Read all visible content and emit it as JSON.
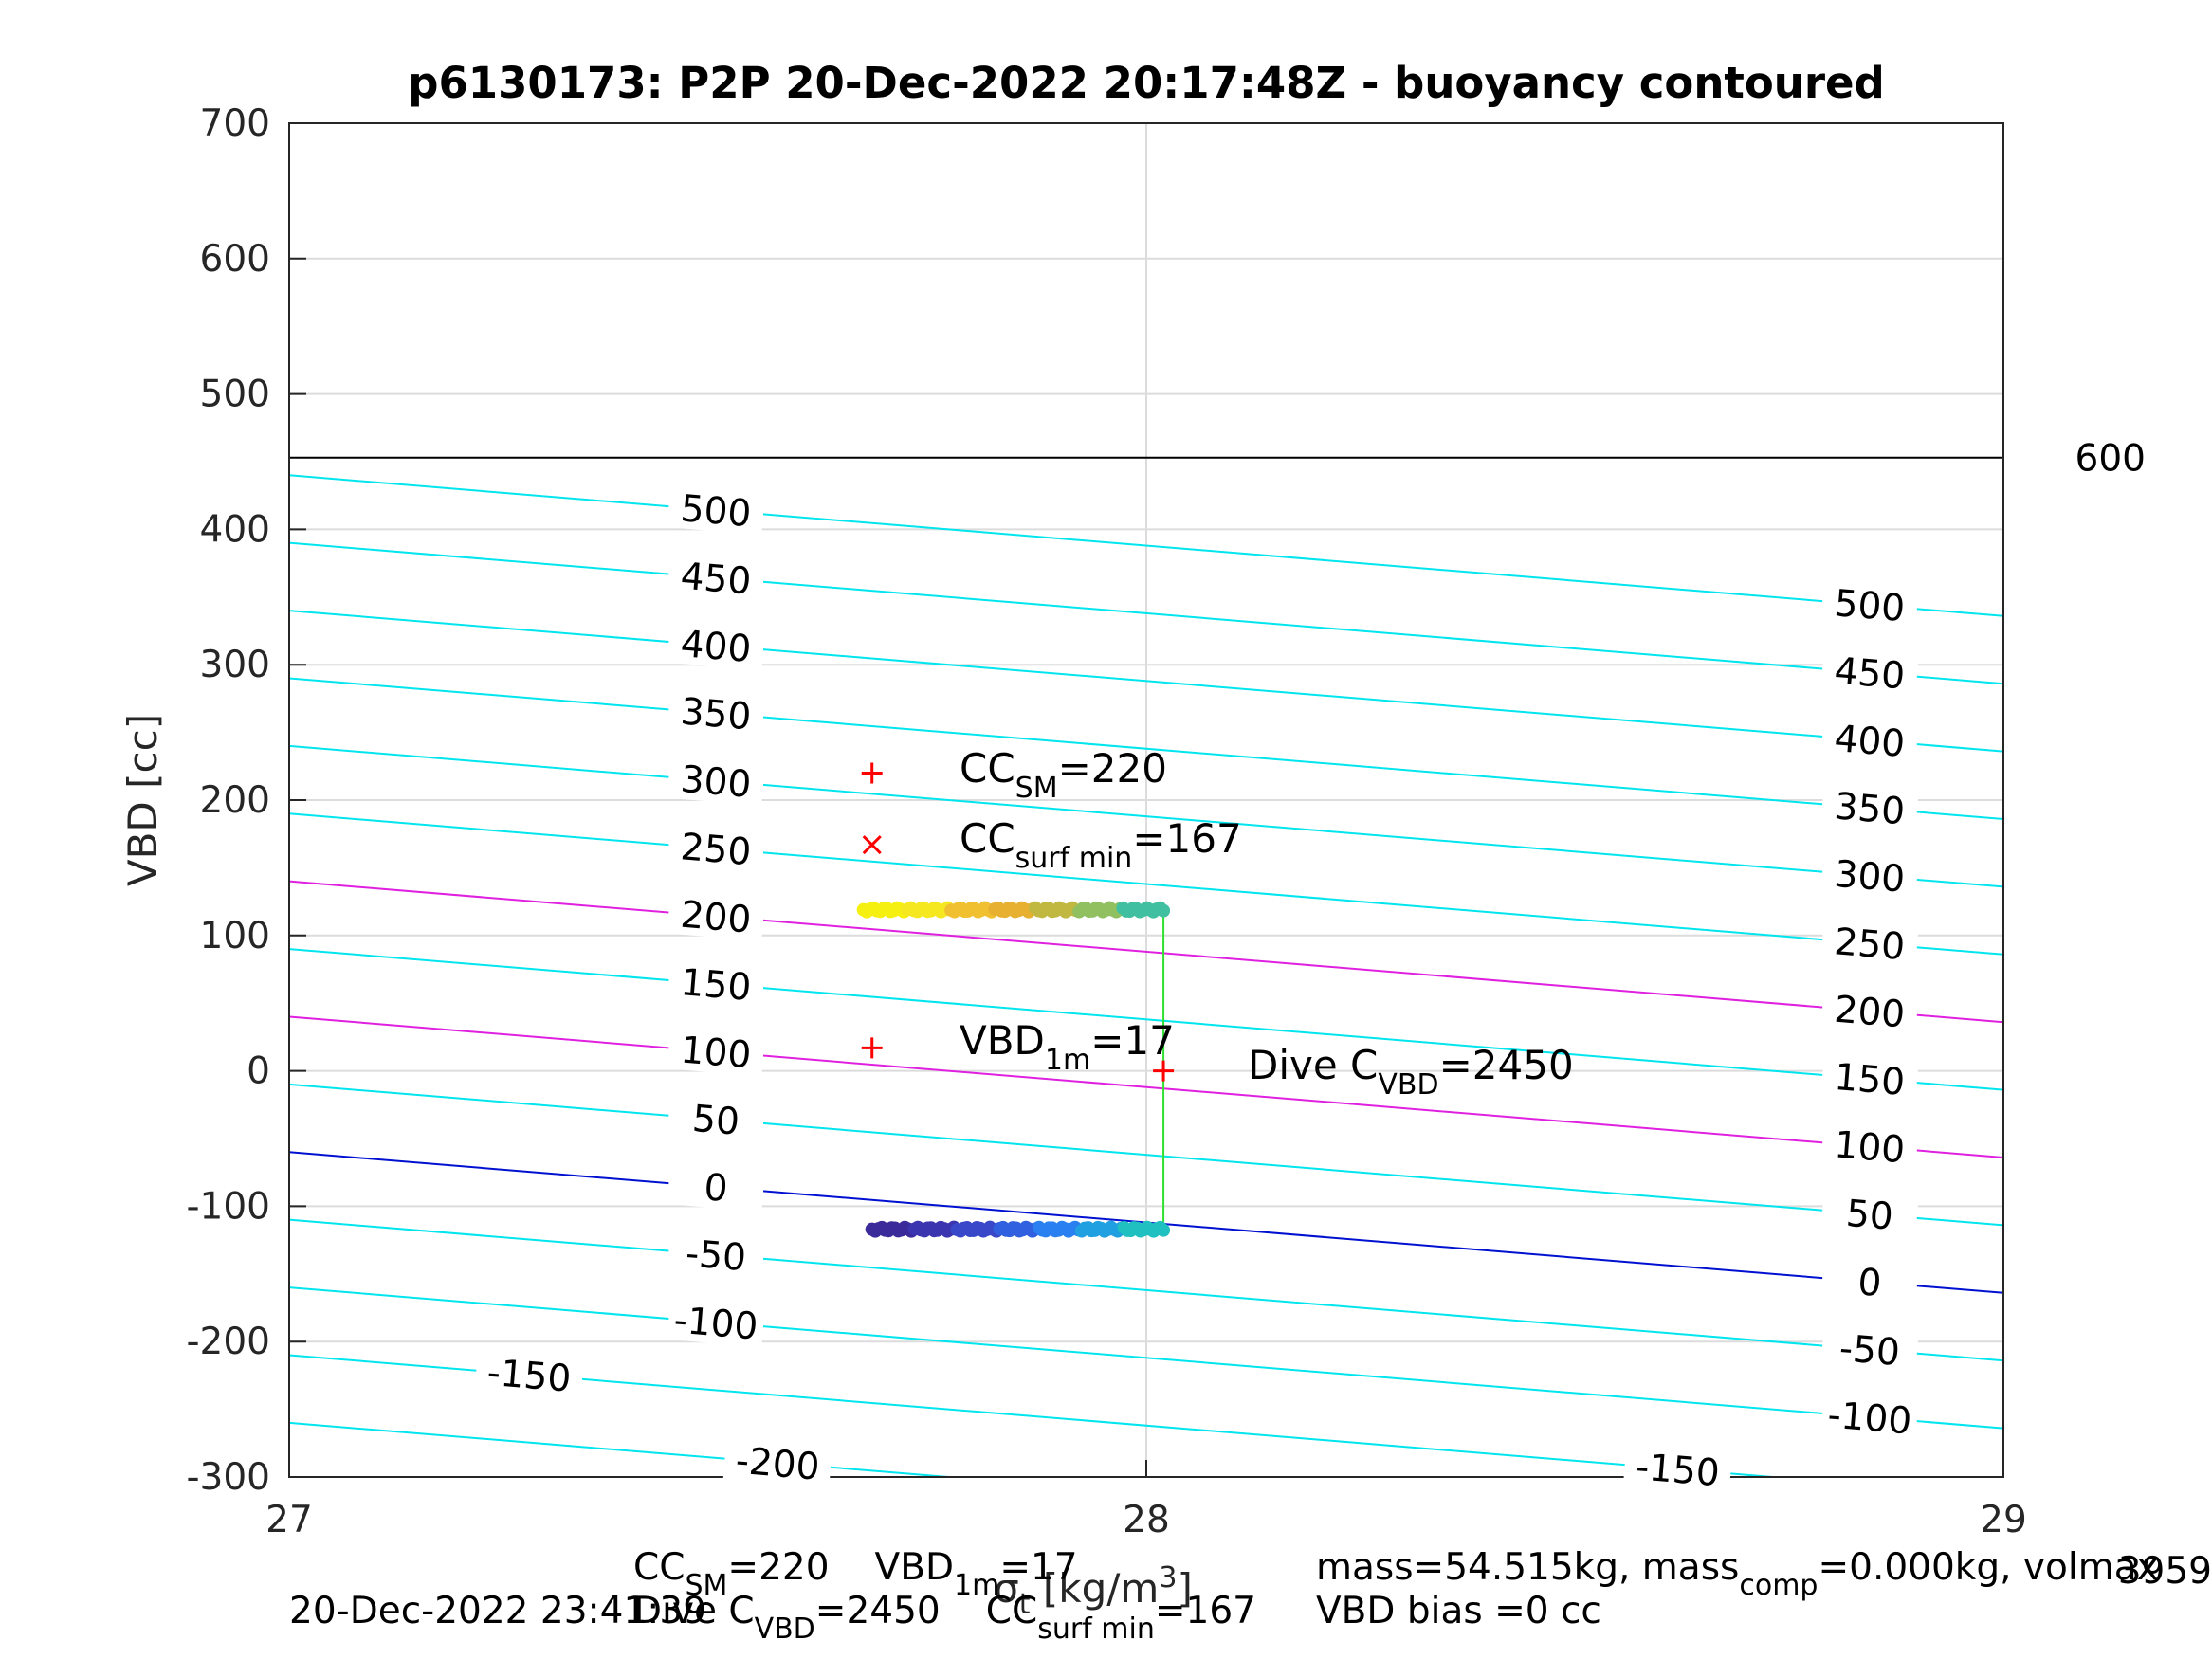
{
  "chart_data": {
    "type": "scatter",
    "title": "p6130173: P2P 20-Dec-2022 20:17:48Z - buoyancy contoured",
    "ylabel": "VBD [cc]",
    "xlim": [
      27,
      29
    ],
    "ylim": [
      -300,
      700
    ],
    "xticks": [
      "27",
      "28",
      "29"
    ],
    "yticks": [
      "700",
      "600",
      "500",
      "400",
      "300",
      "200",
      "100",
      "0",
      "-100",
      "-200",
      "-300"
    ],
    "grid": true,
    "vbd_max_line": {
      "y": 453,
      "label": "600"
    },
    "buoyancy_contours": [
      {
        "level": "500",
        "y_left": 440,
        "y_right": 336
      },
      {
        "level": "450",
        "y_left": 390,
        "y_right": 286
      },
      {
        "level": "400",
        "y_left": 340,
        "y_right": 236
      },
      {
        "level": "350",
        "y_left": 290,
        "y_right": 186
      },
      {
        "level": "300",
        "y_left": 240,
        "y_right": 136
      },
      {
        "level": "250",
        "y_left": 190,
        "y_right": 86
      },
      {
        "level": "200",
        "y_left": 140,
        "y_right": 36
      },
      {
        "level": "150",
        "y_left": 90,
        "y_right": -14
      },
      {
        "level": "100",
        "y_left": 40,
        "y_right": -64
      },
      {
        "level": "50",
        "y_left": -10,
        "y_right": -114
      },
      {
        "level": "0",
        "y_left": -60,
        "y_right": -164
      },
      {
        "level": "-50",
        "y_left": -110,
        "y_right": -214
      },
      {
        "level": "-100",
        "y_left": -160,
        "y_right": -264
      },
      {
        "level": "-150",
        "y_left": -210,
        "y_right": -314
      },
      {
        "level": "-200",
        "y_left": -260,
        "y_right": -364
      }
    ],
    "contour_colors": {
      "default": "#00e5ee",
      "highlight": "#e020e0",
      "zero": "#0010d0",
      "vbd_max": "#000000"
    },
    "highlight_levels": [
      "200",
      "100"
    ],
    "zero_level": "0",
    "left_labels": [
      "500",
      "450",
      "400",
      "350",
      "300",
      "250",
      "200",
      "150",
      "100",
      "50",
      "0",
      "-50",
      "-100",
      "-150",
      "-200"
    ],
    "right_labels": [
      "500",
      "450",
      "400",
      "350",
      "300",
      "250",
      "200",
      "150",
      "100",
      "50",
      "0",
      "-50",
      "-100",
      "-150"
    ],
    "surface_track": {
      "x_start": 27.67,
      "x_end": 28.02,
      "y": 119,
      "colors": [
        "#f5f010",
        "#f5e820",
        "#f0c030",
        "#e8b030",
        "#c0b840",
        "#90c060",
        "#40c0a0"
      ]
    },
    "deep_track": {
      "x_start": 27.68,
      "x_end": 28.02,
      "y": -117,
      "colors": [
        "#3a2a9a",
        "#3c35b0",
        "#3848c8",
        "#3060e0",
        "#2a80f0",
        "#20a0e0",
        "#20c0c0"
      ]
    },
    "connector": {
      "x": 28.02,
      "y_top": 119,
      "y_bottom": -117,
      "color": "#30e030"
    },
    "markers": [
      {
        "type": "plus",
        "x": 27.68,
        "y": 220,
        "color": "#ff0000"
      },
      {
        "type": "cross",
        "x": 27.68,
        "y": 167,
        "color": "#ff0000"
      },
      {
        "type": "plus",
        "x": 27.68,
        "y": 17,
        "color": "#ff0000"
      },
      {
        "type": "plus",
        "x": 28.02,
        "y": 0,
        "color": "#ff0000"
      }
    ],
    "annotations": {
      "cc_sm": {
        "main": "CC",
        "sub": "SM",
        "tail": "=220"
      },
      "cc_surf": {
        "main": "CC",
        "sub": "surf min",
        "tail": "=167"
      },
      "vbd1m": {
        "main": "VBD",
        "sub": "1m",
        "tail": "=17"
      },
      "dive_c": {
        "main": "Dive C",
        "sub": "VBD",
        "tail": "=2450"
      }
    },
    "xlabel_parts": {
      "main": "σ",
      "sub": "t",
      "tail": " [kg/m",
      "sup": "3",
      "close": "]"
    },
    "footer": {
      "date": "20-Dec-2022 23:41:39",
      "line1": {
        "cc": "CC",
        "cc_sub": "SM",
        "cc_val": "=220",
        "vbd": "VBD",
        "vbd_sub": "1m",
        "vbd_val": "=17"
      },
      "line2": {
        "dive": "Dive C",
        "dive_sub": "VBD",
        "dive_val": "=2450",
        "surf": "CC",
        "surf_sub": "surf min",
        "surf_val": "=167"
      },
      "mass_line": {
        "a": "mass=54.515kg, mass",
        "sub": "comp",
        "b": "=0.000kg, volmax"
      },
      "bias": "VBD bias =0 cc",
      "corner": "3959"
    }
  }
}
